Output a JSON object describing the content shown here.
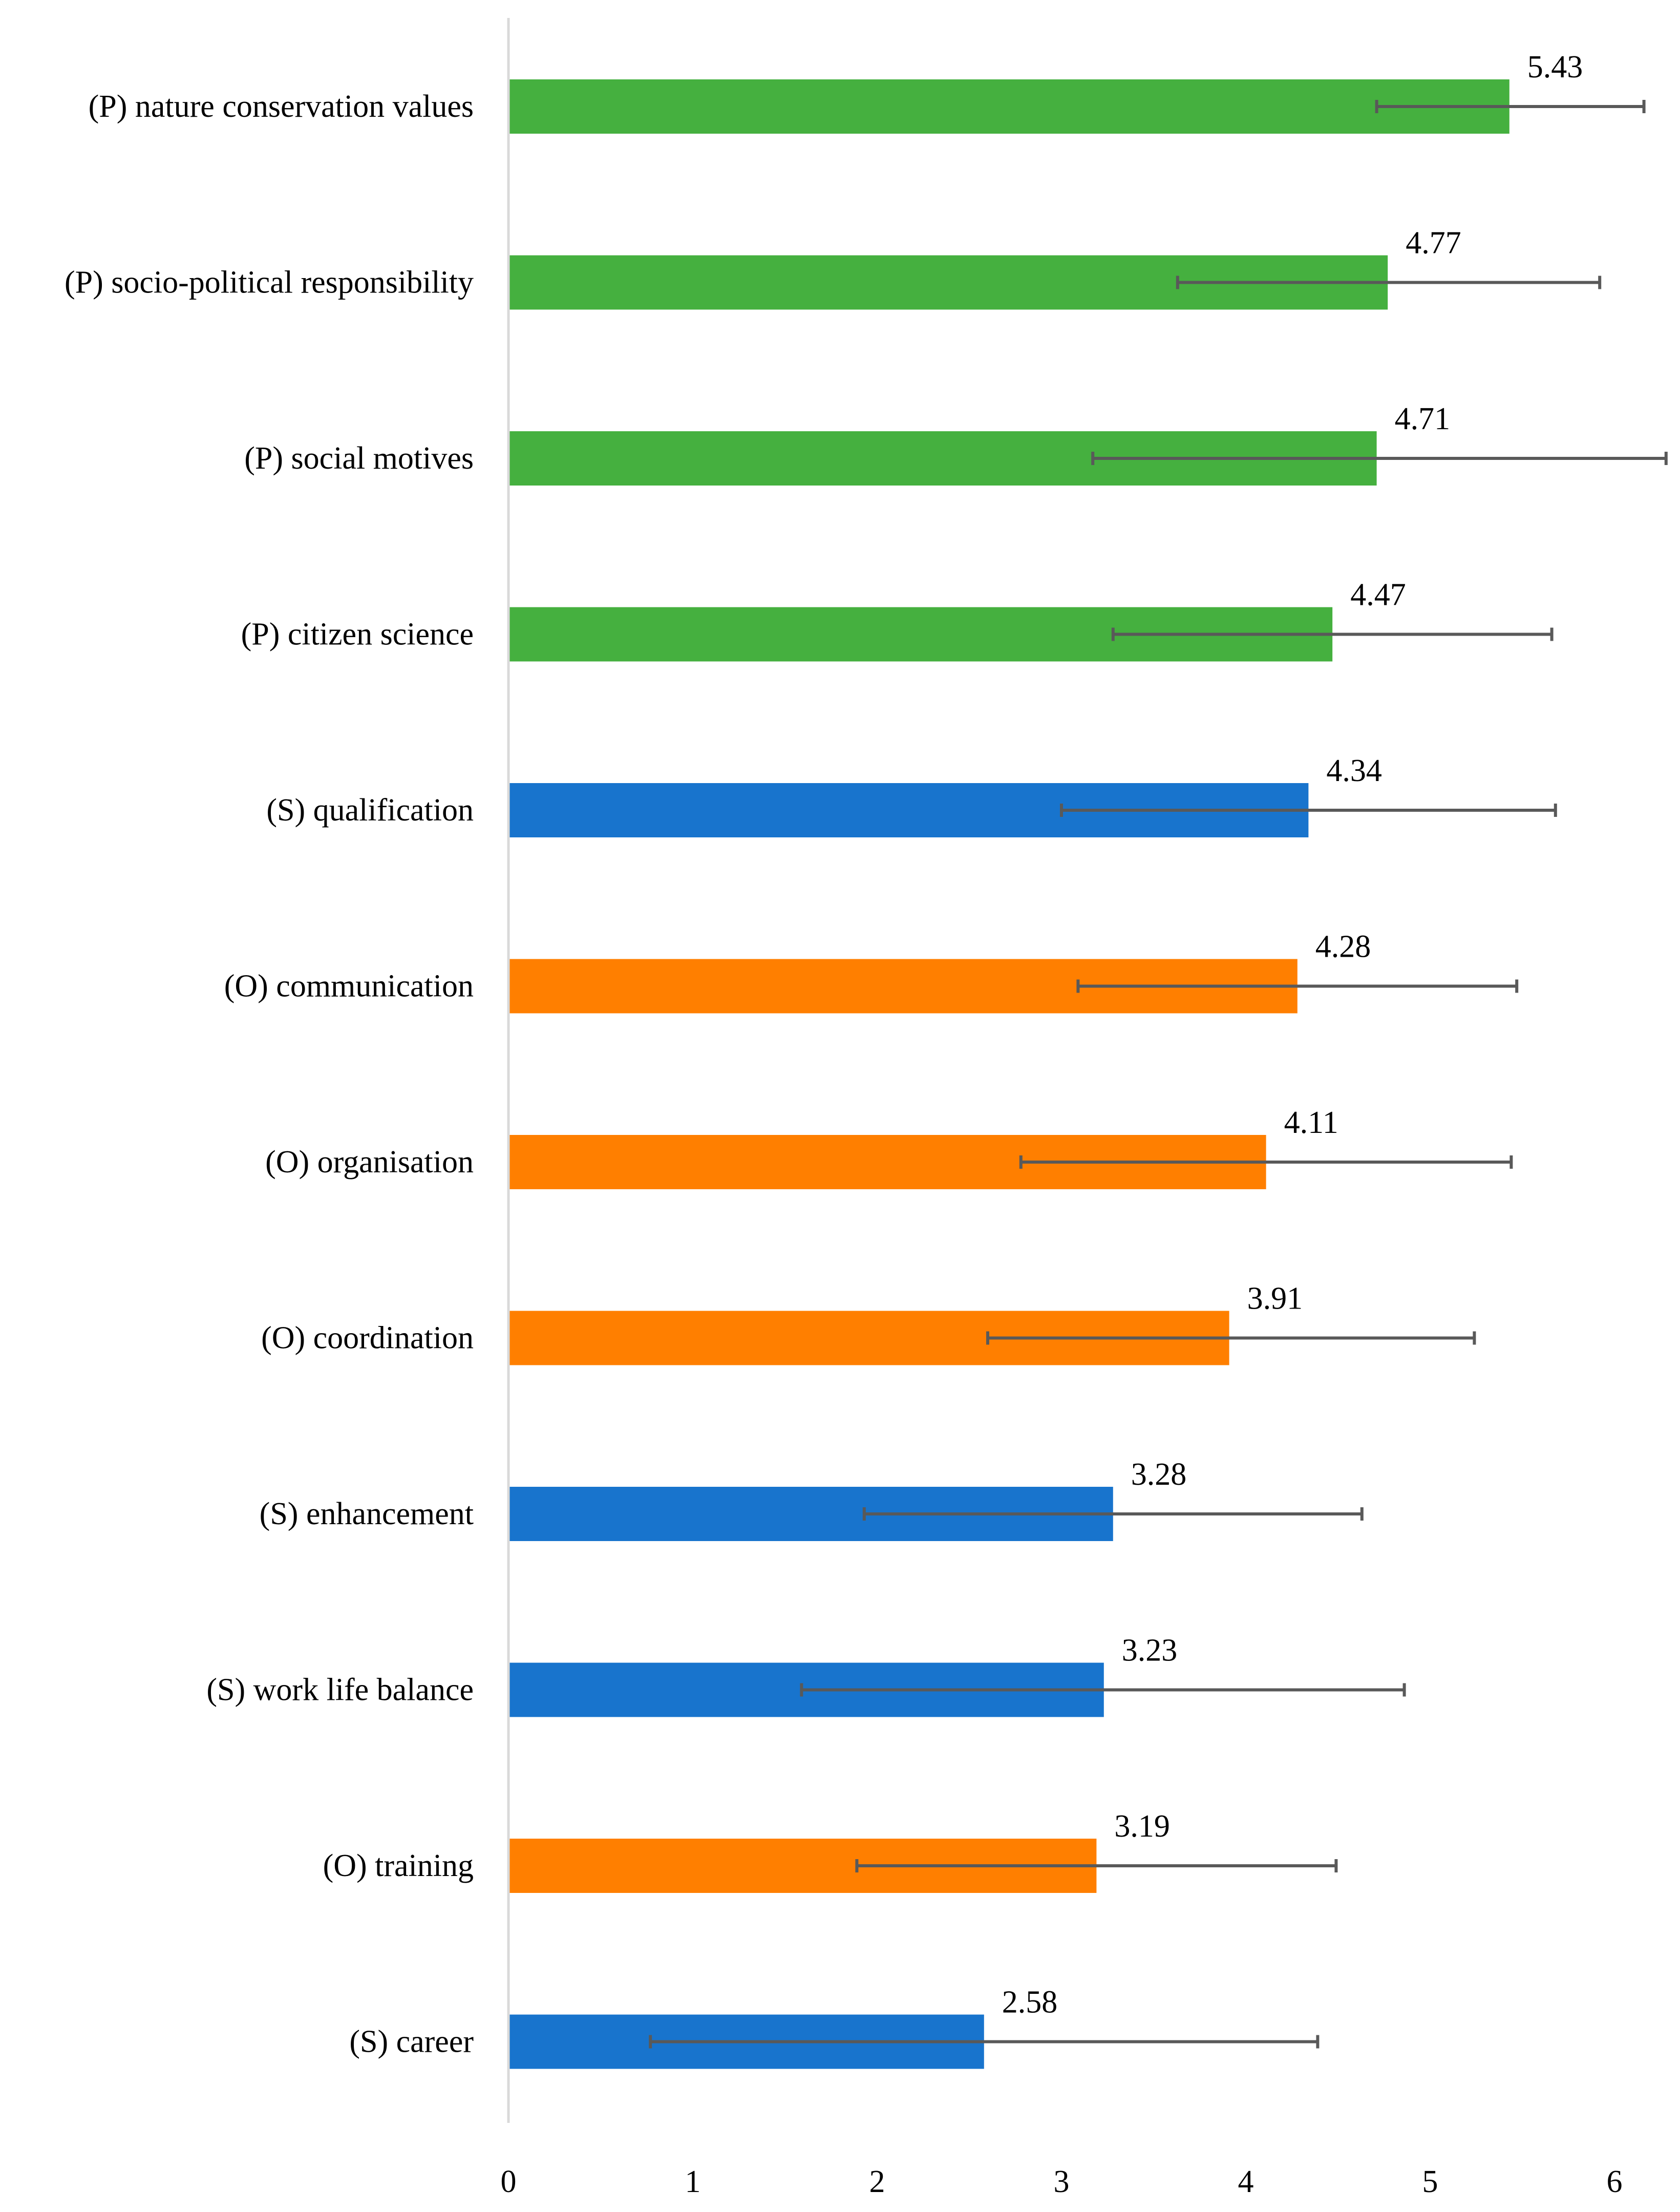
{
  "chart_data": {
    "type": "bar",
    "orientation": "horizontal",
    "title": "",
    "xlabel": "",
    "ylabel": "",
    "xlim": [
      0,
      6
    ],
    "xticks": [
      "0",
      "1",
      "2",
      "3",
      "4",
      "5",
      "6"
    ],
    "grid": false,
    "legend": "none",
    "error_bars": true,
    "colors": {
      "P": "#45B03F",
      "S": "#1874CD",
      "O": "#FF7F00",
      "axis": "#D9D9D9",
      "error_bar": "#595959"
    },
    "categories": [
      "(P) nature conservation values",
      "(P) socio-political responsibility",
      "(P) social motives",
      "(P) citizen science",
      "(S) qualification",
      "(O) communication",
      "(O) organisation",
      "(O) coordination",
      "(S) enhancement",
      "(S) work life balance",
      "(O) training",
      "(S) career"
    ],
    "groups": [
      "P",
      "P",
      "P",
      "P",
      "S",
      "O",
      "O",
      "O",
      "S",
      "S",
      "O",
      "S"
    ],
    "values": [
      5.43,
      4.77,
      4.71,
      4.47,
      4.34,
      4.28,
      4.11,
      3.91,
      3.28,
      3.23,
      3.19,
      2.58
    ],
    "value_labels": [
      "5.43",
      "4.77",
      "4.71",
      "4.47",
      "4.34",
      "4.28",
      "4.11",
      "3.91",
      "3.28",
      "3.23",
      "3.19",
      "2.58"
    ],
    "error_low": [
      4.71,
      3.63,
      3.17,
      3.28,
      3.0,
      3.09,
      2.78,
      2.6,
      1.93,
      1.59,
      1.89,
      0.77
    ],
    "error_high": [
      6.16,
      5.92,
      6.28,
      5.66,
      5.68,
      5.47,
      5.44,
      5.24,
      4.63,
      4.86,
      4.49,
      4.39
    ]
  }
}
